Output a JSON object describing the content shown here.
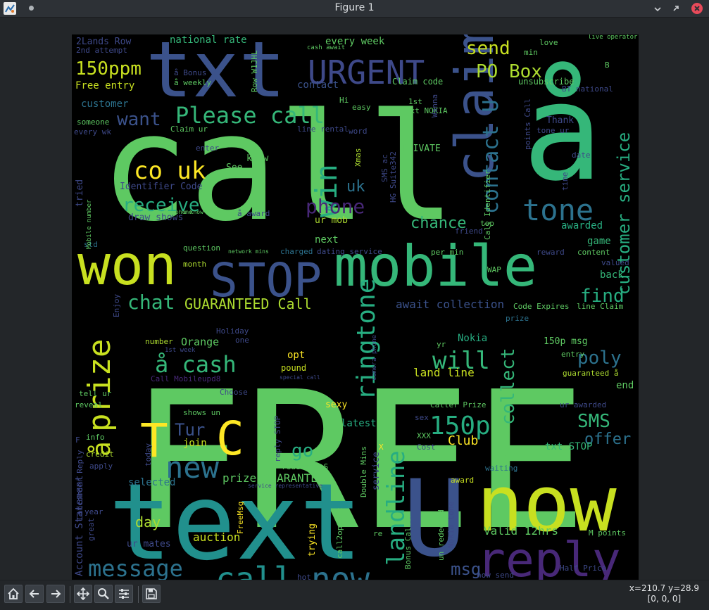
{
  "window": {
    "title": "Figure 1"
  },
  "toolbar": {
    "buttons": [
      {
        "name": "home-button",
        "icon": "home-icon"
      },
      {
        "name": "back-button",
        "icon": "arrow-left-icon"
      },
      {
        "name": "forward-button",
        "icon": "arrow-right-icon"
      },
      {
        "name": "pan-button",
        "icon": "move-icon"
      },
      {
        "name": "zoom-button",
        "icon": "magnifier-icon"
      },
      {
        "name": "configure-subplots-button",
        "icon": "sliders-icon"
      },
      {
        "name": "save-button",
        "icon": "floppy-disk-icon"
      }
    ],
    "coords_xy": "x=210.7 y=28.9",
    "coords_value": "[0, 0, 0]"
  },
  "colors": {
    "background": "#000000",
    "palette": [
      "#440154",
      "#3b528b",
      "#21908d",
      "#5ec962",
      "#fde725",
      "#2c728e",
      "#27ad81",
      "#addc30"
    ]
  },
  "words": [
    {
      "t": "FREE",
      "s": 270,
      "c": "#5ec962"
    },
    {
      "t": "call",
      "s": 210,
      "c": "#5ec962"
    },
    {
      "t": "å",
      "s": 190,
      "c": "#35b779"
    },
    {
      "t": "text",
      "s": 150,
      "c": "#21908d"
    },
    {
      "t": "U",
      "s": 150,
      "c": "#3b528b"
    },
    {
      "t": "txt",
      "s": 110,
      "c": "#3b528b"
    },
    {
      "t": "now",
      "s": 110,
      "c": "#c8e020"
    },
    {
      "t": "mobile",
      "s": 80,
      "c": "#35b779"
    },
    {
      "t": "won",
      "s": 78,
      "c": "#c8e020"
    },
    {
      "t": "claim",
      "s": 75,
      "c": "#3b528b"
    },
    {
      "t": "reply",
      "s": 68,
      "c": "#482878"
    },
    {
      "t": "STOP",
      "s": 66,
      "c": "#3b528b"
    },
    {
      "t": "T",
      "s": 66,
      "c": "#fde725"
    },
    {
      "t": "C",
      "s": 66,
      "c": "#fde725"
    },
    {
      "t": "URGENT",
      "s": 46,
      "c": "#3e4989"
    },
    {
      "t": "call",
      "s": 46,
      "c": "#21908d"
    },
    {
      "t": "now",
      "s": 46,
      "c": "#2c728e"
    },
    {
      "t": "prize",
      "s": 44,
      "c": "#c8e020"
    },
    {
      "t": "new",
      "s": 42,
      "c": "#2c728e"
    },
    {
      "t": "win",
      "s": 42,
      "c": "#27ad81"
    },
    {
      "t": "tone",
      "s": 42,
      "c": "#2c728e"
    },
    {
      "t": "ringtone",
      "s": 36,
      "c": "#27ad81"
    },
    {
      "t": "150p",
      "s": 36,
      "c": "#27ad81"
    },
    {
      "t": "landline",
      "s": 34,
      "c": "#27ad81"
    },
    {
      "t": "message",
      "s": 32,
      "c": "#2c728e"
    },
    {
      "t": "Please call",
      "s": 32,
      "c": "#35b779"
    },
    {
      "t": "co uk",
      "s": 34,
      "c": "#fde725"
    },
    {
      "t": "å cash",
      "s": 32,
      "c": "#35b779"
    },
    {
      "t": "å",
      "s": 36,
      "c": "#c8e020"
    },
    {
      "t": "contact U",
      "s": 30,
      "c": "#2c728e"
    },
    {
      "t": "customer service",
      "s": 24,
      "c": "#27ad81"
    },
    {
      "t": "collect",
      "s": 26,
      "c": "#35b779"
    },
    {
      "t": "will",
      "s": 34,
      "c": "#35b779"
    },
    {
      "t": "chat",
      "s": 28,
      "c": "#35b779"
    },
    {
      "t": "phone",
      "s": 28,
      "c": "#482878"
    },
    {
      "t": "150ppm",
      "s": 26,
      "c": "#c8e020"
    },
    {
      "t": "PO Box",
      "s": 26,
      "c": "#addc30"
    },
    {
      "t": "send",
      "s": 26,
      "c": "#c8e020"
    },
    {
      "t": "receive",
      "s": 26,
      "c": "#27ad81"
    },
    {
      "t": "want",
      "s": 26,
      "c": "#3b528b"
    },
    {
      "t": "find",
      "s": 26,
      "c": "#27ad81"
    },
    {
      "t": "poly",
      "s": 26,
      "c": "#2c728e"
    },
    {
      "t": "SMS",
      "s": 26,
      "c": "#35b779"
    },
    {
      "t": "offer",
      "s": 22,
      "c": "#2c728e"
    },
    {
      "t": "go",
      "s": 26,
      "c": "#27ad81"
    },
    {
      "t": "Tur",
      "s": 24,
      "c": "#3b528b"
    },
    {
      "t": "uk",
      "s": 22,
      "c": "#2c728e"
    },
    {
      "t": "msg",
      "s": 24,
      "c": "#3b528b"
    },
    {
      "t": "chance",
      "s": 22,
      "c": "#35b779"
    },
    {
      "t": "GUARANTEED Call",
      "s": 20,
      "c": "#addc30"
    },
    {
      "t": "Club",
      "s": 18,
      "c": "#fde725"
    },
    {
      "t": "day",
      "s": 20,
      "c": "#addc30"
    },
    {
      "t": "auction",
      "s": 16,
      "c": "#c8e020"
    },
    {
      "t": "send STOP",
      "s": 16,
      "c": "#2c728e"
    },
    {
      "t": "prize GUARANTEED",
      "s": 16,
      "c": "#5ec962"
    },
    {
      "t": "land line",
      "s": 16,
      "c": "#c8e020"
    },
    {
      "t": "Valid 12hrs",
      "s": 16,
      "c": "#5ec962"
    },
    {
      "t": "Suite342 2Lands",
      "s": 14,
      "c": "#c8e020"
    },
    {
      "t": "await collection",
      "s": 16,
      "c": "#3b528b"
    },
    {
      "t": "contact",
      "s": 14,
      "c": "#3b528b"
    },
    {
      "t": "every week",
      "s": 14,
      "c": "#5ec962"
    },
    {
      "t": "national rate",
      "s": 14,
      "c": "#35b779"
    },
    {
      "t": "2Lands Row",
      "s": 13,
      "c": "#3e4989"
    },
    {
      "t": "Free entry",
      "s": 14,
      "c": "#c8e020"
    },
    {
      "t": "customer",
      "s": 14,
      "c": "#2c728e"
    },
    {
      "t": "Claim code",
      "s": 12,
      "c": "#5ec962"
    },
    {
      "t": "unsubscribe",
      "s": 12,
      "c": "#5ec962"
    },
    {
      "t": "PRIVATE",
      "s": 13,
      "c": "#5ec962"
    },
    {
      "t": "Identifier Code",
      "s": 13,
      "c": "#3e4989"
    },
    {
      "t": "draw shows",
      "s": 13,
      "c": "#3e4989"
    },
    {
      "t": "ur mob",
      "s": 13,
      "c": "#addc30"
    },
    {
      "t": "awarded",
      "s": 14,
      "c": "#27ad81"
    },
    {
      "t": "game",
      "s": 14,
      "c": "#35b779"
    },
    {
      "t": "back",
      "s": 14,
      "c": "#35b779"
    },
    {
      "t": "Orange",
      "s": 15,
      "c": "#5ec962"
    },
    {
      "t": "opt",
      "s": 14,
      "c": "#fde725"
    },
    {
      "t": "pound",
      "s": 12,
      "c": "#c8e020"
    },
    {
      "t": "Nokia",
      "s": 14,
      "c": "#27ad81"
    },
    {
      "t": "150p msg",
      "s": 13,
      "c": "#5ec962"
    },
    {
      "t": "end",
      "s": 14,
      "c": "#5ec962"
    },
    {
      "t": "pic",
      "s": 14,
      "c": "#5ec962"
    },
    {
      "t": "txt STOP",
      "s": 14,
      "c": "#35b779"
    },
    {
      "t": "latest",
      "s": 14,
      "c": "#27ad81"
    },
    {
      "t": "sexy",
      "s": 13,
      "c": "#fde725"
    },
    {
      "t": "join",
      "s": 14,
      "c": "#c8e020"
    },
    {
      "t": "selected",
      "s": 14,
      "c": "#2c728e"
    },
    {
      "t": "winner",
      "s": 14,
      "c": "#5ec962"
    },
    {
      "t": "name",
      "s": 13,
      "c": "#addc30"
    },
    {
      "t": "ur mates",
      "s": 13,
      "c": "#3e4989"
    },
    {
      "t": "See",
      "s": 13,
      "c": "#5ec962"
    },
    {
      "t": "know",
      "s": 13,
      "c": "#5ec962"
    },
    {
      "t": "next",
      "s": 14,
      "c": "#5ec962"
    },
    {
      "t": "std",
      "s": 11,
      "c": "#2c728e"
    },
    {
      "t": "question",
      "s": 11,
      "c": "#5ec962"
    },
    {
      "t": "month",
      "s": 11,
      "c": "#addc30"
    },
    {
      "t": "charged",
      "s": 11,
      "c": "#2c728e"
    },
    {
      "t": "dating service",
      "s": 11,
      "c": "#3e4989"
    },
    {
      "t": "tried",
      "s": 13,
      "c": "#3e4989"
    },
    {
      "t": "Thank",
      "s": 13,
      "c": "#3e4989"
    },
    {
      "t": "Xmas",
      "s": 11,
      "c": "#addc30"
    },
    {
      "t": "top",
      "s": 11,
      "c": "#5ec962"
    },
    {
      "t": "friend",
      "s": 11,
      "c": "#3e4989"
    },
    {
      "t": "reward",
      "s": 11,
      "c": "#3e4989"
    },
    {
      "t": "content",
      "s": 11,
      "c": "#5ec962"
    },
    {
      "t": "valued",
      "s": 11,
      "c": "#3e4989"
    },
    {
      "t": "WAP",
      "s": 11,
      "c": "#5ec962"
    },
    {
      "t": "per min",
      "s": 11,
      "c": "#5ec962"
    },
    {
      "t": "Code Expires",
      "s": 11,
      "c": "#5ec962"
    },
    {
      "t": "line Claim",
      "s": 11,
      "c": "#5ec962"
    },
    {
      "t": "prize",
      "s": 11,
      "c": "#2c728e"
    },
    {
      "t": "Caller Prize",
      "s": 11,
      "c": "#5ec962"
    },
    {
      "t": "ur awarded",
      "s": 11,
      "c": "#3e4989"
    },
    {
      "t": "guaranteed å",
      "s": 11,
      "c": "#addc30"
    },
    {
      "t": "redeemed S",
      "s": 11,
      "c": "#5ec962"
    },
    {
      "t": "waiting",
      "s": 11,
      "c": "#2c728e"
    },
    {
      "t": "award",
      "s": 11,
      "c": "#c8e020"
    },
    {
      "t": "Cost",
      "s": 11,
      "c": "#3e4989"
    },
    {
      "t": "XXX",
      "s": 11,
      "c": "#5ec962"
    },
    {
      "t": "sex",
      "s": 11,
      "c": "#3e4989"
    },
    {
      "t": "credit",
      "s": 11,
      "c": "#addc30"
    },
    {
      "t": "info",
      "s": 11,
      "c": "#5ec962"
    },
    {
      "t": "reveal",
      "s": 11,
      "c": "#5ec962"
    },
    {
      "t": "tell ur",
      "s": 11,
      "c": "#5ec962"
    },
    {
      "t": "ur cash",
      "s": 11,
      "c": "#2c728e"
    },
    {
      "t": "hot",
      "s": 11,
      "c": "#3e4989"
    },
    {
      "t": "Dear",
      "s": 11,
      "c": "#3e4989"
    },
    {
      "t": "now send",
      "s": 11,
      "c": "#3e4989"
    },
    {
      "t": "Week",
      "s": 12,
      "c": "#3e4989"
    },
    {
      "t": "M points",
      "s": 11,
      "c": "#5ec962"
    },
    {
      "t": "Half Price",
      "s": 11,
      "c": "#3e4989"
    },
    {
      "t": "eg",
      "s": 11,
      "c": "#5ec962"
    },
    {
      "t": "number",
      "s": 11,
      "c": "#addc30"
    },
    {
      "t": "one",
      "s": 11,
      "c": "#3e4989"
    },
    {
      "t": "Holiday",
      "s": 11,
      "c": "#3e4989"
    },
    {
      "t": "shows un",
      "s": 11,
      "c": "#5ec962"
    },
    {
      "t": "Choose",
      "s": 11,
      "c": "#3e4989"
    },
    {
      "t": "Call Mobileupd8",
      "s": 11,
      "c": "#482878"
    },
    {
      "t": "2nd attempt",
      "s": 11,
      "c": "#3e4989"
    },
    {
      "t": "å Bonus",
      "s": 11,
      "c": "#3e4989"
    },
    {
      "t": "å weekly",
      "s": 11,
      "c": "#5ec962"
    },
    {
      "t": "someone",
      "s": 11,
      "c": "#5ec962"
    },
    {
      "t": "every wk",
      "s": 11,
      "c": "#3e4989"
    },
    {
      "t": "Claim ur",
      "s": 11,
      "c": "#5ec962"
    },
    {
      "t": "enter",
      "s": 11,
      "c": "#3e4989"
    },
    {
      "t": "å award",
      "s": 11,
      "c": "#3e4989"
    },
    {
      "t": "1st",
      "s": 11,
      "c": "#5ec962"
    },
    {
      "t": "txt NOKIA",
      "s": 11,
      "c": "#5ec962"
    },
    {
      "t": "easy",
      "s": 11,
      "c": "#5ec962"
    },
    {
      "t": "line rental",
      "s": 11,
      "c": "#3e4989"
    },
    {
      "t": "word",
      "s": 11,
      "c": "#3e4989"
    },
    {
      "t": "min",
      "s": 11,
      "c": "#5ec962"
    },
    {
      "t": "love",
      "s": 11,
      "c": "#5ec962"
    },
    {
      "t": "BT national",
      "s": 11,
      "c": "#3e4989"
    },
    {
      "t": "tone ur",
      "s": 11,
      "c": "#3e4989"
    },
    {
      "t": "date",
      "s": 11,
      "c": "#3e4989"
    },
    {
      "t": "entry",
      "s": 11,
      "c": "#5ec962"
    },
    {
      "t": "yr",
      "s": 11,
      "c": "#5ec962"
    },
    {
      "t": "live operator",
      "s": 9,
      "c": "#5ec962"
    },
    {
      "t": "cash await",
      "s": 9,
      "c": "#5ec962"
    },
    {
      "t": "network mins",
      "s": 8,
      "c": "#5ec962"
    },
    {
      "t": "secret admirer",
      "s": 8,
      "c": "#3e4989"
    },
    {
      "t": "service representative",
      "s": 8,
      "c": "#3e4989"
    },
    {
      "t": "special call",
      "s": 8,
      "c": "#3e4989"
    },
    {
      "t": "video phone",
      "s": 8,
      "c": "#5ec962"
    },
    {
      "t": "u know",
      "s": 8,
      "c": "#5ec962"
    },
    {
      "t": "1st week",
      "s": 9,
      "c": "#3e4989"
    },
    {
      "t": "great",
      "s": 11,
      "c": "#3e4989"
    },
    {
      "t": "year",
      "s": 11,
      "c": "#3e4989"
    },
    {
      "t": "apply",
      "s": 11,
      "c": "#3e4989"
    },
    {
      "t": "B",
      "s": 11,
      "c": "#5ec962"
    },
    {
      "t": "F",
      "s": 11,
      "c": "#3e4989"
    },
    {
      "t": "X",
      "s": 11,
      "c": "#fde725"
    },
    {
      "t": "re",
      "s": 11,
      "c": "#5ec962"
    },
    {
      "t": "Hi",
      "s": 11,
      "c": "#5ec962"
    },
    {
      "t": "Account Statement",
      "s": 14,
      "c": "#3e4989"
    },
    {
      "t": "Camcorder Reply",
      "s": 11,
      "c": "#3e4989"
    },
    {
      "t": "Enjoy",
      "s": 11,
      "c": "#3e4989"
    },
    {
      "t": "Mobile number",
      "s": 9,
      "c": "#5ec962"
    },
    {
      "t": "trying",
      "s": 13,
      "c": "#fde725"
    },
    {
      "t": "txting",
      "s": 11,
      "c": "#5ec962"
    },
    {
      "t": "call2optout",
      "s": 11,
      "c": "#5ec962"
    },
    {
      "t": "FreeMsg",
      "s": 11,
      "c": "#fde725"
    },
    {
      "t": "reply STOP",
      "s": 11,
      "c": "#3e4989"
    },
    {
      "t": "Double Mins",
      "s": 11,
      "c": "#5ec962"
    },
    {
      "t": "service",
      "s": 13,
      "c": "#3e4989"
    },
    {
      "t": "Bonus Caller",
      "s": 11,
      "c": "#5ec962"
    },
    {
      "t": "un redeemed",
      "s": 11,
      "c": "#5ec962"
    },
    {
      "t": "Nokia tone",
      "s": 11,
      "c": "#3e4989"
    },
    {
      "t": "camera phone",
      "s": 9,
      "c": "#3e4989"
    },
    {
      "t": "Call Identifier",
      "s": 11,
      "c": "#5ec962"
    },
    {
      "t": "points Call",
      "s": 11,
      "c": "#3e4989"
    },
    {
      "t": "SMS ac",
      "s": 11,
      "c": "#3e4989"
    },
    {
      "t": "HG Suite342",
      "s": 11,
      "c": "#3e4989"
    },
    {
      "t": "Row W1JHL",
      "s": 11,
      "c": "#5ec962"
    },
    {
      "t": "time",
      "s": 11,
      "c": "#3e4989"
    },
    {
      "t": "Wanna",
      "s": 11,
      "c": "#3e4989"
    },
    {
      "t": "today",
      "s": 11,
      "c": "#3e4989"
    }
  ]
}
